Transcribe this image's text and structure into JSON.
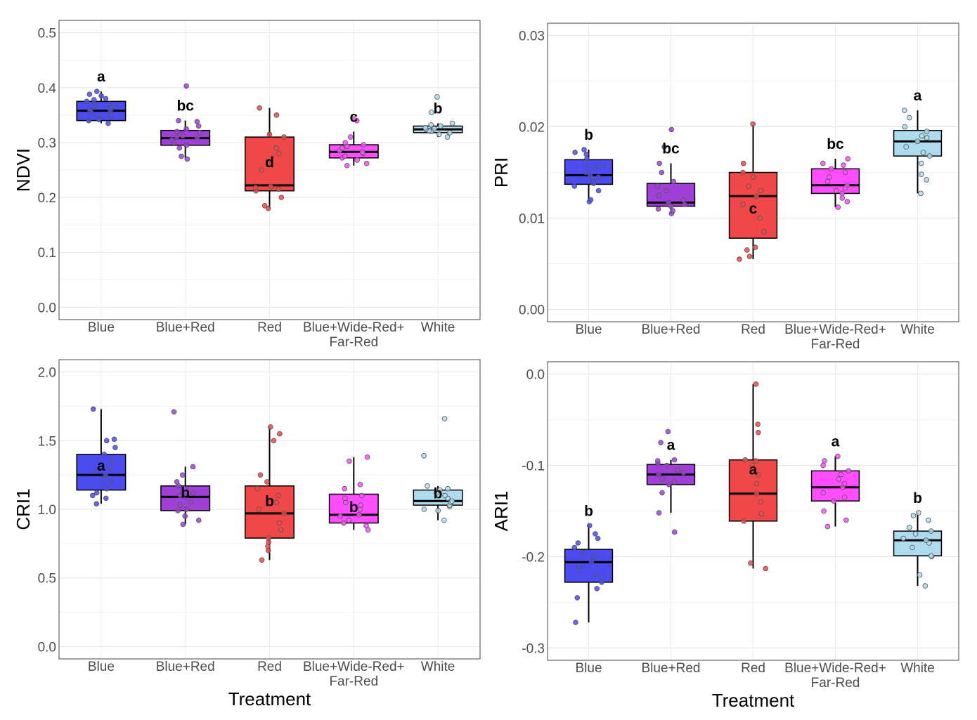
{
  "figure": {
    "x_title": "Treatment",
    "categories": [
      "Blue",
      "Blue+Red",
      "Red",
      "Blue+Wide-Red+\nFar-Red",
      "White"
    ],
    "colors": [
      "#4b4bf0",
      "#a040d8",
      "#f04848",
      "#ff4dff",
      "#aedcee"
    ]
  },
  "chart_data": [
    {
      "type": "box",
      "ylabel": "NDVI",
      "ylim": [
        0.0,
        0.5
      ],
      "yticks": [
        "0.0",
        "0.1",
        "0.2",
        "0.3",
        "0.4",
        "0.5"
      ],
      "show_xlabel": false,
      "groups": [
        {
          "category": "Blue",
          "min": 0.335,
          "q1": 0.34,
          "median": 0.358,
          "q3": 0.375,
          "max": 0.393,
          "letter": "a",
          "points": [
            0.335,
            0.34,
            0.342,
            0.35,
            0.355,
            0.358,
            0.36,
            0.365,
            0.368,
            0.37,
            0.375,
            0.378,
            0.38,
            0.385,
            0.388,
            0.393
          ]
        },
        {
          "category": "Blue+Red",
          "min": 0.27,
          "q1": 0.295,
          "median": 0.308,
          "q3": 0.322,
          "max": 0.34,
          "letter": "bc",
          "points": [
            0.27,
            0.275,
            0.29,
            0.295,
            0.3,
            0.305,
            0.308,
            0.31,
            0.312,
            0.318,
            0.32,
            0.325,
            0.33,
            0.338,
            0.34,
            0.403
          ]
        },
        {
          "category": "Red",
          "min": 0.18,
          "q1": 0.212,
          "median": 0.222,
          "q3": 0.31,
          "max": 0.363,
          "letter": "d",
          "points": [
            0.18,
            0.185,
            0.2,
            0.212,
            0.215,
            0.218,
            0.22,
            0.25,
            0.26,
            0.28,
            0.29,
            0.31,
            0.315,
            0.35,
            0.363
          ]
        },
        {
          "category": "Blue+Wide-Red+\nFar-Red",
          "min": 0.258,
          "q1": 0.272,
          "median": 0.283,
          "q3": 0.296,
          "max": 0.32,
          "letter": "c",
          "points": [
            0.258,
            0.262,
            0.268,
            0.272,
            0.275,
            0.28,
            0.283,
            0.285,
            0.29,
            0.293,
            0.296,
            0.3,
            0.31,
            0.34,
            0.343
          ]
        },
        {
          "category": "White",
          "min": 0.31,
          "q1": 0.318,
          "median": 0.324,
          "q3": 0.33,
          "max": 0.335,
          "letter": "b",
          "points": [
            0.31,
            0.315,
            0.318,
            0.32,
            0.322,
            0.324,
            0.325,
            0.327,
            0.33,
            0.332,
            0.335,
            0.355,
            0.383
          ]
        }
      ]
    },
    {
      "type": "box",
      "ylabel": "PRI",
      "ylim": [
        0.0,
        0.03
      ],
      "yticks": [
        "0.00",
        "0.01",
        "0.02",
        "0.03"
      ],
      "show_xlabel": false,
      "groups": [
        {
          "category": "Blue",
          "min": 0.0118,
          "q1": 0.0137,
          "median": 0.0147,
          "q3": 0.0164,
          "max": 0.0175,
          "letter": "b",
          "points": [
            0.0118,
            0.012,
            0.013,
            0.0135,
            0.0138,
            0.014,
            0.0145,
            0.0147,
            0.015,
            0.0155,
            0.0158,
            0.016,
            0.0165,
            0.017,
            0.0172,
            0.0175
          ]
        },
        {
          "category": "Blue+Red",
          "min": 0.0105,
          "q1": 0.0113,
          "median": 0.0117,
          "q3": 0.0138,
          "max": 0.016,
          "letter": "bc",
          "points": [
            0.0105,
            0.0108,
            0.011,
            0.0113,
            0.0115,
            0.0117,
            0.012,
            0.0125,
            0.013,
            0.0135,
            0.014,
            0.015,
            0.016,
            0.0178,
            0.0197
          ]
        },
        {
          "category": "Red",
          "min": 0.0055,
          "q1": 0.0078,
          "median": 0.0124,
          "q3": 0.015,
          "max": 0.0202,
          "letter": "c",
          "points": [
            0.0055,
            0.0058,
            0.0065,
            0.0068,
            0.0085,
            0.01,
            0.0115,
            0.0124,
            0.013,
            0.0135,
            0.0145,
            0.015,
            0.016,
            0.0203
          ]
        },
        {
          "category": "Blue+Wide-Red+\nFar-Red",
          "min": 0.0112,
          "q1": 0.0127,
          "median": 0.0136,
          "q3": 0.0154,
          "max": 0.0165,
          "letter": "bc",
          "points": [
            0.0112,
            0.0118,
            0.0122,
            0.0127,
            0.013,
            0.0133,
            0.0136,
            0.014,
            0.0145,
            0.015,
            0.0154,
            0.0158,
            0.016,
            0.0165
          ]
        },
        {
          "category": "White",
          "min": 0.0127,
          "q1": 0.0168,
          "median": 0.0184,
          "q3": 0.0196,
          "max": 0.0218,
          "letter": "a",
          "points": [
            0.0127,
            0.0142,
            0.0148,
            0.016,
            0.0168,
            0.0172,
            0.0178,
            0.0184,
            0.0188,
            0.019,
            0.0195,
            0.02,
            0.021,
            0.0218
          ]
        }
      ]
    },
    {
      "type": "box",
      "ylabel": "CRI1",
      "ylim": [
        0.0,
        2.0
      ],
      "yticks": [
        "0.0",
        "0.5",
        "1.0",
        "1.5",
        "2.0"
      ],
      "show_xlabel": true,
      "groups": [
        {
          "category": "Blue",
          "min": 1.04,
          "q1": 1.14,
          "median": 1.25,
          "q3": 1.4,
          "max": 1.73,
          "letter": "a",
          "points": [
            1.04,
            1.08,
            1.1,
            1.12,
            1.15,
            1.2,
            1.22,
            1.25,
            1.28,
            1.3,
            1.35,
            1.4,
            1.45,
            1.5,
            1.51,
            1.73
          ]
        },
        {
          "category": "Blue+Red",
          "min": 0.89,
          "q1": 0.99,
          "median": 1.09,
          "q3": 1.17,
          "max": 1.31,
          "letter": "b",
          "points": [
            0.89,
            0.92,
            0.95,
            0.99,
            1.0,
            1.03,
            1.05,
            1.09,
            1.1,
            1.12,
            1.15,
            1.17,
            1.2,
            1.25,
            1.31,
            1.71
          ]
        },
        {
          "category": "Red",
          "min": 0.63,
          "q1": 0.79,
          "median": 0.97,
          "q3": 1.17,
          "max": 1.6,
          "letter": "b",
          "points": [
            0.63,
            0.7,
            0.73,
            0.76,
            0.79,
            0.85,
            0.9,
            0.97,
            1.0,
            1.05,
            1.1,
            1.15,
            1.2,
            1.25,
            1.5,
            1.55,
            1.6
          ]
        },
        {
          "category": "Blue+Wide-Red+\nFar-Red",
          "min": 0.85,
          "q1": 0.9,
          "median": 0.96,
          "q3": 1.11,
          "max": 1.38,
          "letter": "b",
          "points": [
            0.85,
            0.88,
            0.9,
            0.92,
            0.95,
            0.96,
            1.0,
            1.03,
            1.05,
            1.08,
            1.1,
            1.15,
            1.18,
            1.35,
            1.38
          ]
        },
        {
          "category": "White",
          "min": 0.92,
          "q1": 1.03,
          "median": 1.06,
          "q3": 1.14,
          "max": 1.17,
          "letter": "b",
          "points": [
            0.92,
            0.99,
            1.0,
            1.02,
            1.03,
            1.05,
            1.06,
            1.08,
            1.1,
            1.12,
            1.14,
            1.15,
            1.17,
            1.39,
            1.66
          ]
        }
      ]
    },
    {
      "type": "box",
      "ylabel": "ARI1",
      "ylim": [
        -0.3,
        0.0
      ],
      "yticks": [
        "-0.3",
        "-0.2",
        "-0.1",
        "0.0"
      ],
      "show_xlabel": true,
      "groups": [
        {
          "category": "Blue",
          "min": -0.272,
          "q1": -0.228,
          "median": -0.206,
          "q3": -0.192,
          "max": -0.166,
          "letter": "b",
          "points": [
            -0.272,
            -0.245,
            -0.235,
            -0.228,
            -0.22,
            -0.215,
            -0.21,
            -0.206,
            -0.2,
            -0.196,
            -0.19,
            -0.185,
            -0.18,
            -0.175,
            -0.166
          ]
        },
        {
          "category": "Blue+Red",
          "min": -0.152,
          "q1": -0.121,
          "median": -0.11,
          "q3": -0.099,
          "max": -0.094,
          "letter": "a",
          "points": [
            -0.173,
            -0.152,
            -0.13,
            -0.121,
            -0.118,
            -0.115,
            -0.11,
            -0.108,
            -0.105,
            -0.1,
            -0.098,
            -0.095,
            -0.094,
            -0.075,
            -0.063
          ]
        },
        {
          "category": "Red",
          "min": -0.213,
          "q1": -0.161,
          "median": -0.131,
          "q3": -0.094,
          "max": -0.011,
          "letter": "a",
          "points": [
            -0.213,
            -0.207,
            -0.161,
            -0.153,
            -0.14,
            -0.131,
            -0.12,
            -0.11,
            -0.1,
            -0.095,
            -0.094,
            -0.064,
            -0.055,
            -0.011
          ]
        },
        {
          "category": "Blue+Wide-Red+\nFar-Red",
          "min": -0.167,
          "q1": -0.139,
          "median": -0.124,
          "q3": -0.106,
          "max": -0.09,
          "letter": "a",
          "points": [
            -0.167,
            -0.16,
            -0.15,
            -0.139,
            -0.135,
            -0.13,
            -0.124,
            -0.12,
            -0.115,
            -0.11,
            -0.106,
            -0.1,
            -0.095,
            -0.09
          ]
        },
        {
          "category": "White",
          "min": -0.232,
          "q1": -0.199,
          "median": -0.182,
          "q3": -0.172,
          "max": -0.152,
          "letter": "b",
          "points": [
            -0.232,
            -0.22,
            -0.2,
            -0.199,
            -0.19,
            -0.185,
            -0.182,
            -0.18,
            -0.175,
            -0.172,
            -0.168,
            -0.16,
            -0.155,
            -0.152
          ]
        }
      ]
    }
  ]
}
